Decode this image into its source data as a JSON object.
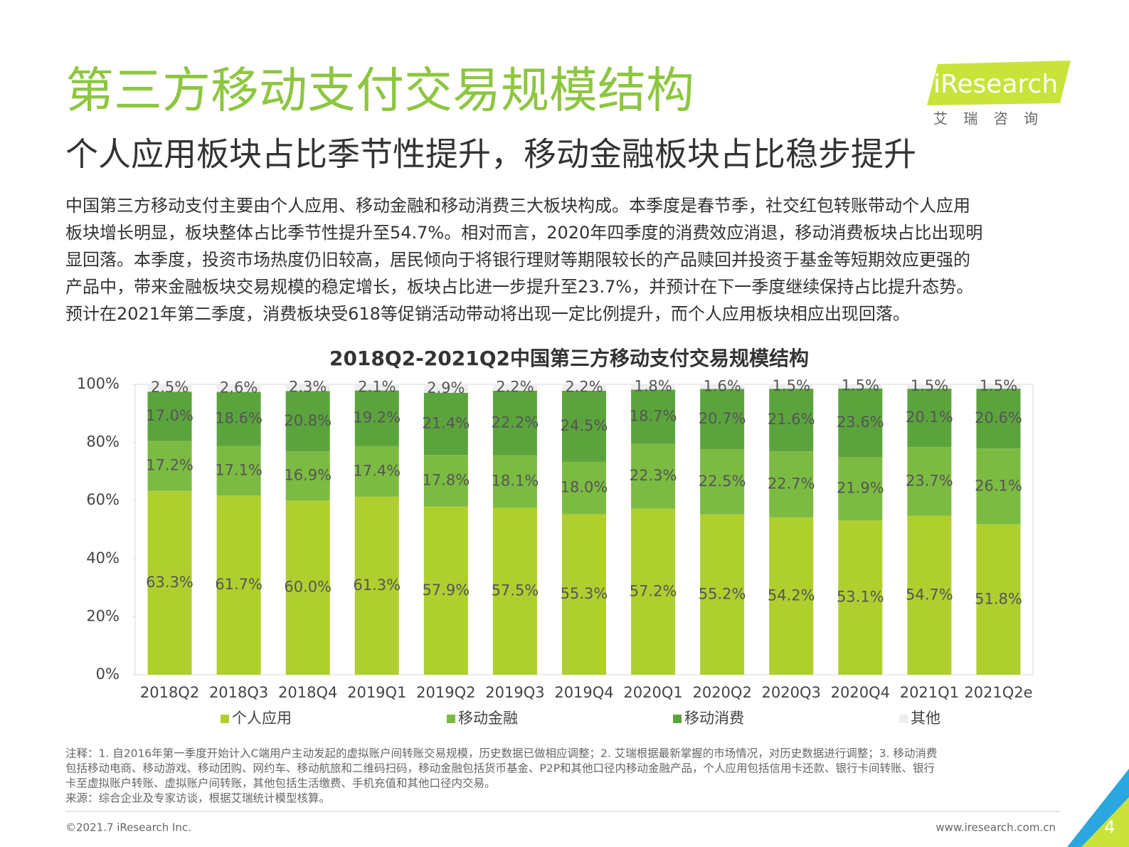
{
  "title": "第三方移动支付交易规模结构",
  "subtitle": "个人应用板块占比季节性提升，移动金融板块占比稳步提升",
  "logo": {
    "brand": "iResearch",
    "tagline": "艾 瑞 咨 询"
  },
  "body": [
    "中国第三方移动支付主要由个人应用、移动金融和移动消费三大板块构成。本季度是春节季，社交红包转账带动个人应用",
    "板块增长明显，板块整体占比季节性提升至54.7%。相对而言，2020年四季度的消费效应消退，移动消费板块占比出现明",
    "显回落。本季度，投资市场热度仍旧较高，居民倾向于将银行理财等期限较长的产品赎回并投资于基金等短期效应更强的",
    "产品中，带来金融板块交易规模的稳定增长，板块占比进一步提升至23.7%，并预计在下一季度继续保持占比提升态势。",
    "预计在2021年第二季度，消费板块受618等促销活动带动将出现一定比例提升，而个人应用板块相应出现回落。"
  ],
  "chart_data": {
    "type": "stacked_bar",
    "title": "2018Q2-2021Q2中国第三方移动支付交易规模结构",
    "categories": [
      "2018Q2",
      "2018Q3",
      "2018Q4",
      "2019Q1",
      "2019Q2",
      "2019Q3",
      "2019Q4",
      "2020Q1",
      "2020Q2",
      "2020Q3",
      "2020Q4",
      "2021Q1",
      "2021Q2e"
    ],
    "ylim": [
      0,
      100
    ],
    "yticks": [
      {
        "value": 0,
        "label": "0%"
      },
      {
        "value": 20,
        "label": "20%"
      },
      {
        "value": 40,
        "label": "40%"
      },
      {
        "value": 60,
        "label": "60%"
      },
      {
        "value": 80,
        "label": "80%"
      },
      {
        "value": 100,
        "label": "100%"
      }
    ],
    "legend": "bottom",
    "series": [
      {
        "name": "个人应用",
        "color": "#afcf2f",
        "values": [
          63.3,
          61.7,
          60.0,
          61.3,
          57.9,
          57.5,
          55.3,
          57.2,
          55.2,
          54.2,
          53.1,
          54.7,
          51.8
        ],
        "value_labels": [
          "63.3%",
          "61.7%",
          "60.0%",
          "61.3%",
          "57.9%",
          "57.5%",
          "55.3%",
          "57.2%",
          "55.2%",
          "54.2%",
          "53.1%",
          "54.7%",
          "51.8%"
        ]
      },
      {
        "name": "移动金融",
        "color": "#7cbb42",
        "values": [
          17.2,
          17.1,
          16.9,
          17.4,
          17.8,
          18.1,
          18.0,
          22.3,
          22.5,
          22.7,
          21.9,
          23.7,
          26.1
        ],
        "value_labels": [
          "17.2%",
          "17.1%",
          "16.9%",
          "17.4%",
          "17.8%",
          "18.1%",
          "18.0%",
          "22.3%",
          "22.5%",
          "22.7%",
          "21.9%",
          "23.7%",
          "26.1%"
        ]
      },
      {
        "name": "移动消费",
        "color": "#5ba43d",
        "values": [
          17.0,
          18.6,
          20.8,
          19.2,
          21.4,
          22.2,
          24.5,
          18.7,
          20.7,
          21.6,
          23.6,
          20.1,
          20.6
        ],
        "value_labels": [
          "17.0%",
          "18.6%",
          "20.8%",
          "19.2%",
          "21.4%",
          "22.2%",
          "24.5%",
          "18.7%",
          "20.7%",
          "21.6%",
          "23.6%",
          "20.1%",
          "20.6%"
        ]
      },
      {
        "name": "其他",
        "color": "#eeeeee",
        "values": [
          2.5,
          2.6,
          2.3,
          2.1,
          2.9,
          2.2,
          2.2,
          1.8,
          1.6,
          1.5,
          1.5,
          1.5,
          1.5
        ],
        "value_labels": [
          "2.5%",
          "2.6%",
          "2.3%",
          "2.1%",
          "2.9%",
          "2.2%",
          "2.2%",
          "1.8%",
          "1.6%",
          "1.5%",
          "1.5%",
          "1.5%",
          "1.5%"
        ]
      }
    ]
  },
  "notes": [
    "注释：1. 自2016年第一季度开始计入C端用户主动发起的虚拟账户间转账交易规模，历史数据已做相应调整；2. 艾瑞根据最新掌握的市场情况，对历史数据进行调整；3. 移动消费",
    "包括移动电商、移动游戏、移动团购、网约车、移动航旅和二维码扫码，移动金融包括货币基金、P2P和其他口径内移动金融产品，个人应用包括信用卡还款、银行卡间转账、银行",
    "卡至虚拟账户转账、虚拟账户间转账，其他包括生活缴费、手机充值和其他口径内交易。",
    "来源：综合企业及专家访谈，根据艾瑞统计模型核算。"
  ],
  "footer": {
    "copyright": "©2021.7 iResearch Inc.",
    "url": "www.iresearch.com.cn",
    "page": 4
  }
}
